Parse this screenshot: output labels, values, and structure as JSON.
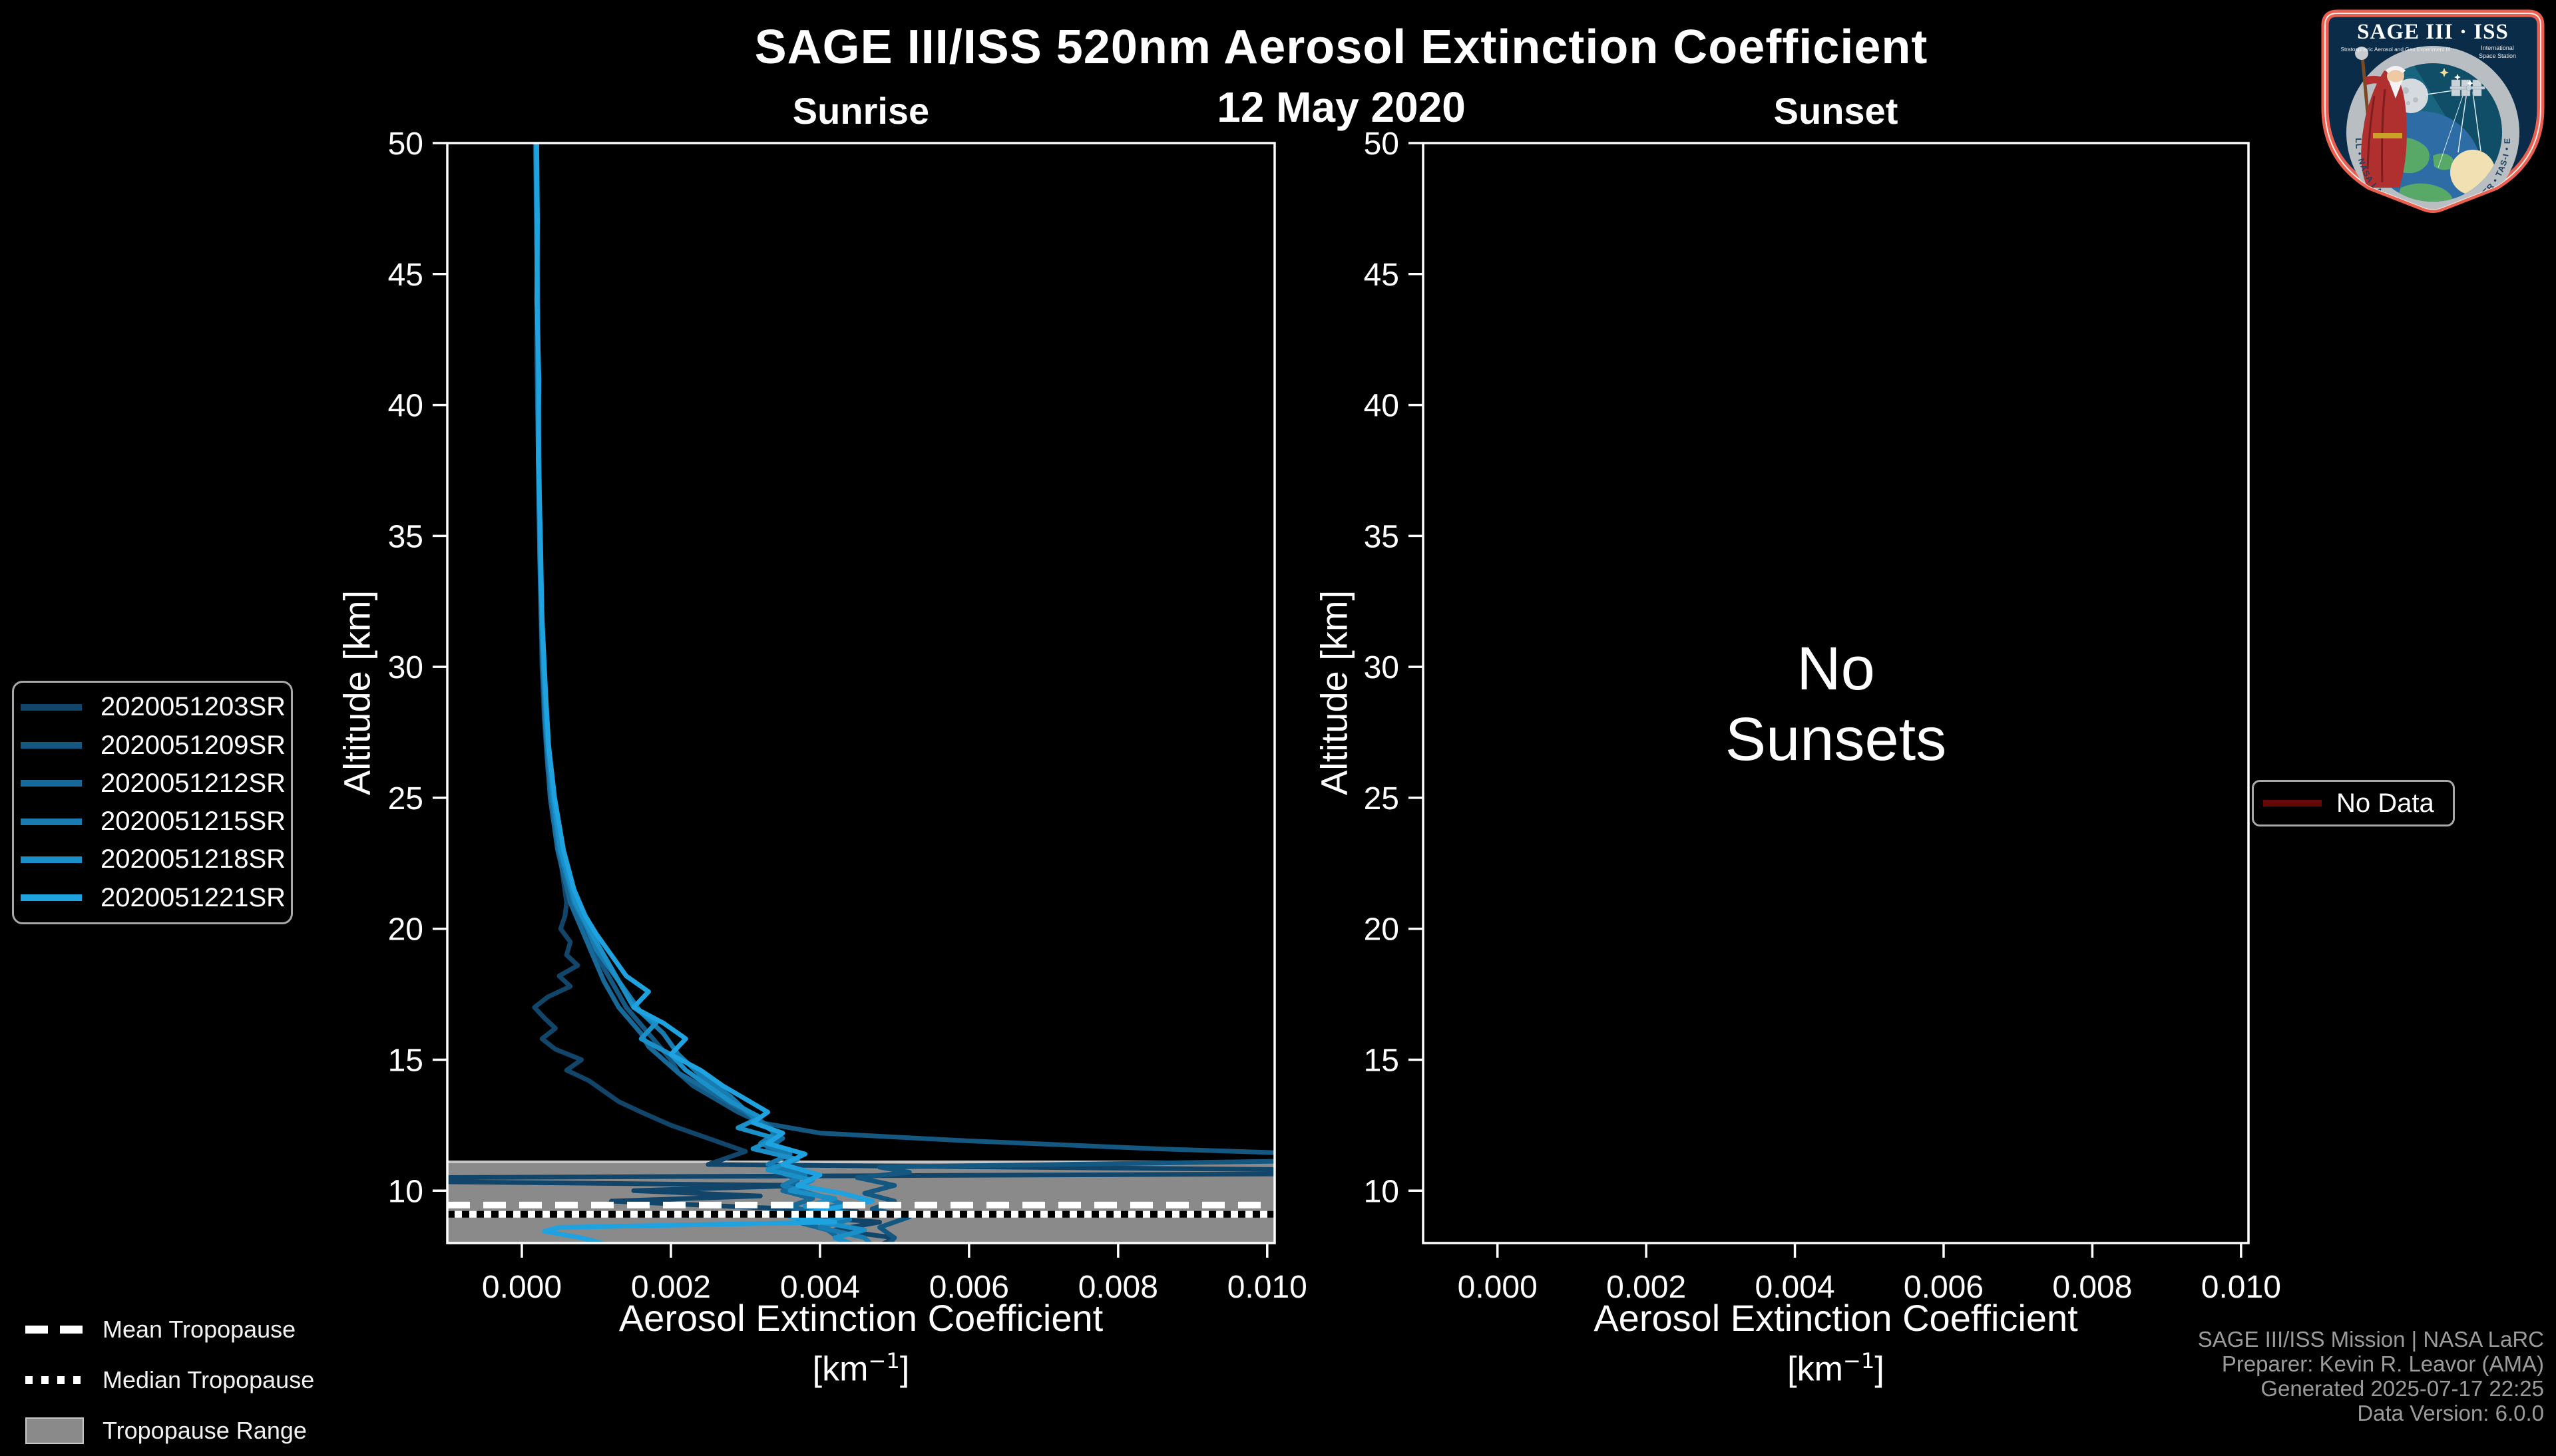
{
  "header": {
    "title": "SAGE III/ISS 520nm Aerosol Extinction Coefficient",
    "date": "12 May 2020"
  },
  "legends": {
    "no_data_label": "No Data",
    "no_data_color": "#660808",
    "tropopause": {
      "mean_label": "Mean Tropopause",
      "median_label": "Median Tropopause",
      "range_label": "Tropopause Range"
    }
  },
  "credits": {
    "line1": "SAGE III/ISS Mission | NASA LaRC",
    "line2": "Preparer: Kevin R. Leavor (AMA)",
    "line3": "Generated 2025-07-17 22:25",
    "line4": "Data Version: 6.0.0"
  },
  "logo": {
    "title": "SAGE III · ISS",
    "subtitle_left": "Stratospheric Aerosol and Gas Experiment III",
    "subtitle_right_1": "International",
    "subtitle_right_2": "Space Station",
    "ring_text": "BALL • NASA LANGLEY RESEARCH CENTER • TAS-I • ESA"
  },
  "chart_data": {
    "type": "line",
    "title": "SAGE III/ISS 520nm Aerosol Extinction Coefficient",
    "subtitle": "12 May 2020",
    "grid": false,
    "legend_position": "outside-left",
    "panels": [
      {
        "id": "sunrise",
        "title": "Sunrise",
        "xlabel": "Aerosol Extinction Coefficient",
        "xunit_prefix": "[km",
        "xunit_sup": "−1",
        "xunit_suffix": "]",
        "ylabel": "Altitude [km]",
        "xlim": [
          -0.001,
          0.0101
        ],
        "ylim": [
          8.0,
          50
        ],
        "xticks": [
          0.0,
          0.002,
          0.004,
          0.006,
          0.008,
          0.01
        ],
        "xtick_labels": [
          "0.000",
          "0.002",
          "0.004",
          "0.006",
          "0.008",
          "0.010"
        ],
        "yticks": [
          10,
          15,
          20,
          25,
          30,
          35,
          40,
          45,
          50
        ],
        "ytick_labels": [
          "10",
          "15",
          "20",
          "25",
          "30",
          "35",
          "40",
          "45",
          "50"
        ],
        "has_data": true
      },
      {
        "id": "sunset",
        "title": "Sunset",
        "xlabel": "Aerosol Extinction Coefficient",
        "xunit_prefix": "[km",
        "xunit_sup": "−1",
        "xunit_suffix": "]",
        "ylabel": "Altitude [km]",
        "xlim": [
          -0.001,
          0.0101
        ],
        "ylim": [
          8.0,
          50
        ],
        "xticks": [
          0.0,
          0.002,
          0.004,
          0.006,
          0.008,
          0.01
        ],
        "xtick_labels": [
          "0.000",
          "0.002",
          "0.004",
          "0.006",
          "0.008",
          "0.010"
        ],
        "yticks": [
          10,
          15,
          20,
          25,
          30,
          35,
          40,
          45,
          50
        ],
        "ytick_labels": [
          "10",
          "15",
          "20",
          "25",
          "30",
          "35",
          "40",
          "45",
          "50"
        ],
        "has_data": false,
        "annotation_line1": "No",
        "annotation_line2": "Sunsets"
      }
    ],
    "tropopause": {
      "mean_km": 9.45,
      "median_km": 9.1,
      "range_km": [
        8.0,
        11.1
      ]
    },
    "series": [
      {
        "name": "2020051203SR",
        "color": "#12456a",
        "points": [
          [
            50,
            0.00018
          ],
          [
            46,
            0.0002
          ],
          [
            42,
            0.00021
          ],
          [
            38,
            0.00022
          ],
          [
            34,
            0.00024
          ],
          [
            30,
            0.00027
          ],
          [
            28,
            0.0003
          ],
          [
            26,
            0.00035
          ],
          [
            24,
            0.00045
          ],
          [
            22,
            0.00055
          ],
          [
            21,
            0.0006
          ],
          [
            20.5,
            0.00058
          ],
          [
            20,
            0.00052
          ],
          [
            19.5,
            0.00065
          ],
          [
            19,
            0.0006
          ],
          [
            18.6,
            0.00075
          ],
          [
            18.2,
            0.0005
          ],
          [
            17.8,
            0.00065
          ],
          [
            17.4,
            0.00035
          ],
          [
            17,
            0.00017
          ],
          [
            16.6,
            0.0003
          ],
          [
            16.2,
            0.00045
          ],
          [
            15.8,
            0.00027
          ],
          [
            15.4,
            0.00045
          ],
          [
            15,
            0.0008
          ],
          [
            14.6,
            0.0006
          ],
          [
            14.2,
            0.0009
          ],
          [
            13.8,
            0.0011
          ],
          [
            13.4,
            0.0013
          ],
          [
            13,
            0.0016
          ],
          [
            12.5,
            0.002
          ],
          [
            12,
            0.0025
          ],
          [
            11.5,
            0.003
          ],
          [
            11,
            0.0025
          ],
          [
            10.8,
            0.0105
          ],
          [
            10.65,
            0.0112
          ],
          [
            10.5,
            -0.0012
          ],
          [
            10.35,
            -0.0014
          ],
          [
            10.2,
            0.0038
          ],
          [
            10,
            0.0015
          ],
          [
            9.8,
            0.0032
          ],
          [
            9.6,
            0.0012
          ],
          [
            9.4,
            0.0028
          ],
          [
            9.2,
            0.0045
          ],
          [
            9,
            0.0038
          ],
          [
            8.8,
            0.0048
          ],
          [
            8.5,
            0.0042
          ],
          [
            8.2,
            0.005
          ],
          [
            7.9,
            0.0048
          ]
        ]
      },
      {
        "name": "2020051209SR",
        "color": "#145781",
        "points": [
          [
            50,
            0.0002
          ],
          [
            46,
            0.00021
          ],
          [
            42,
            0.0002
          ],
          [
            38,
            0.00022
          ],
          [
            34,
            0.00025
          ],
          [
            30,
            0.00028
          ],
          [
            27,
            0.00033
          ],
          [
            25,
            0.0004
          ],
          [
            23,
            0.0005
          ],
          [
            21,
            0.0007
          ],
          [
            20,
            0.00085
          ],
          [
            19,
            0.001
          ],
          [
            18,
            0.0012
          ],
          [
            17,
            0.0014
          ],
          [
            16,
            0.0017
          ],
          [
            15,
            0.002
          ],
          [
            14.5,
            0.0021
          ],
          [
            14,
            0.0023
          ],
          [
            13.5,
            0.0026
          ],
          [
            13,
            0.0029
          ],
          [
            12.6,
            0.0032
          ],
          [
            12.2,
            0.004
          ],
          [
            11.9,
            0.006
          ],
          [
            11.6,
            0.0085
          ],
          [
            11.35,
            0.0112
          ],
          [
            11.15,
            0.0108
          ],
          [
            10.9,
            0.0048
          ],
          [
            10.7,
            0.0052
          ],
          [
            10.5,
            0.0045
          ],
          [
            10.2,
            0.005
          ],
          [
            9.9,
            0.0046
          ],
          [
            9.6,
            0.005
          ],
          [
            9.3,
            0.0047
          ],
          [
            9,
            0.0052
          ],
          [
            8.6,
            0.0048
          ],
          [
            8.2,
            0.005
          ],
          [
            7.9,
            0.0049
          ]
        ]
      },
      {
        "name": "2020051212SR",
        "color": "#166998",
        "points": [
          [
            50,
            0.00019
          ],
          [
            46,
            0.0002
          ],
          [
            42,
            0.00021
          ],
          [
            38,
            0.00022
          ],
          [
            34,
            0.00024
          ],
          [
            30,
            0.00028
          ],
          [
            27,
            0.00033
          ],
          [
            25,
            0.00038
          ],
          [
            23,
            0.00048
          ],
          [
            21,
            0.00065
          ],
          [
            20,
            0.0008
          ],
          [
            19,
            0.00095
          ],
          [
            18,
            0.0011
          ],
          [
            17,
            0.0013
          ],
          [
            16,
            0.0016
          ],
          [
            15.5,
            0.0017
          ],
          [
            15,
            0.0019
          ],
          [
            14.5,
            0.0021
          ],
          [
            14,
            0.0024
          ],
          [
            13.5,
            0.0027
          ],
          [
            13,
            0.003
          ],
          [
            12.5,
            0.0033
          ],
          [
            12,
            0.0035
          ],
          [
            11.6,
            0.0033
          ],
          [
            11.2,
            0.0036
          ],
          [
            10.8,
            0.0034
          ],
          [
            10.4,
            0.0037
          ],
          [
            10,
            0.0035
          ],
          [
            9.7,
            0.0039
          ],
          [
            9.4,
            0.0036
          ],
          [
            9.1,
            0.004
          ],
          [
            8.8,
            0.0037
          ],
          [
            8.5,
            0.0041
          ],
          [
            8.1,
            0.0043
          ],
          [
            7.9,
            0.0044
          ]
        ]
      },
      {
        "name": "2020051215SR",
        "color": "#187cb0",
        "points": [
          [
            50,
            0.0002
          ],
          [
            45,
            0.00021
          ],
          [
            40,
            0.00022
          ],
          [
            36,
            0.00023
          ],
          [
            32,
            0.00026
          ],
          [
            28,
            0.00031
          ],
          [
            25,
            0.0004
          ],
          [
            23,
            0.0005
          ],
          [
            21,
            0.0007
          ],
          [
            20,
            0.00088
          ],
          [
            19.2,
            0.001
          ],
          [
            18.4,
            0.0012
          ],
          [
            17.6,
            0.0014
          ],
          [
            16.8,
            0.0016
          ],
          [
            16,
            0.0019
          ],
          [
            15.2,
            0.0021
          ],
          [
            14.4,
            0.0024
          ],
          [
            13.6,
            0.0028
          ],
          [
            12.8,
            0.0031
          ],
          [
            12.2,
            0.0034
          ],
          [
            11.8,
            0.0032
          ],
          [
            11.4,
            0.0036
          ],
          [
            11,
            0.0033
          ],
          [
            10.6,
            0.0038
          ],
          [
            10.2,
            0.0035
          ],
          [
            9.8,
            0.004
          ],
          [
            9.5,
            0.0043
          ],
          [
            9.2,
            0.0039
          ],
          [
            8.9,
            0.0044
          ],
          [
            8.6,
            0.004
          ],
          [
            8.2,
            0.0046
          ],
          [
            7.9,
            0.0047
          ]
        ]
      },
      {
        "name": "2020051218SR",
        "color": "#1b8fc8",
        "points": [
          [
            50,
            0.00019
          ],
          [
            46,
            0.0002
          ],
          [
            42,
            0.00022
          ],
          [
            38,
            0.00023
          ],
          [
            34,
            0.00025
          ],
          [
            30,
            0.00029
          ],
          [
            27,
            0.00035
          ],
          [
            25,
            0.00042
          ],
          [
            23,
            0.00052
          ],
          [
            21,
            0.00072
          ],
          [
            20,
            0.0009
          ],
          [
            19,
            0.0011
          ],
          [
            18,
            0.0013
          ],
          [
            17,
            0.0015
          ],
          [
            16.4,
            0.0018
          ],
          [
            15.8,
            0.0016
          ],
          [
            15.2,
            0.002
          ],
          [
            14.6,
            0.0022
          ],
          [
            14,
            0.0025
          ],
          [
            13.4,
            0.0028
          ],
          [
            12.8,
            0.0032
          ],
          [
            12.4,
            0.0029
          ],
          [
            12,
            0.0034
          ],
          [
            11.6,
            0.0031
          ],
          [
            11.2,
            0.0037
          ],
          [
            10.8,
            0.0033
          ],
          [
            10.4,
            0.0039
          ],
          [
            10,
            0.0036
          ],
          [
            9.7,
            0.0042
          ],
          [
            9.4,
            0.0038
          ],
          [
            9.1,
            0.0045
          ],
          [
            8.8,
            0.004
          ],
          [
            8.5,
            0.0046
          ],
          [
            8.2,
            0.0042
          ],
          [
            7.9,
            0.0045
          ]
        ]
      },
      {
        "name": "2020051221SR",
        "color": "#1fa2e0",
        "points": [
          [
            50,
            0.0002
          ],
          [
            47,
            0.00021
          ],
          [
            44,
            0.0002
          ],
          [
            41,
            0.00023
          ],
          [
            38,
            0.00022
          ],
          [
            35,
            0.00025
          ],
          [
            32,
            0.00027
          ],
          [
            29,
            0.00032
          ],
          [
            27,
            0.00036
          ],
          [
            25,
            0.00044
          ],
          [
            23,
            0.00056
          ],
          [
            21.5,
            0.0007
          ],
          [
            20.5,
            0.00085
          ],
          [
            19.8,
            0.001
          ],
          [
            19,
            0.0012
          ],
          [
            18.2,
            0.0014
          ],
          [
            17.6,
            0.0017
          ],
          [
            17,
            0.0015
          ],
          [
            16.4,
            0.0019
          ],
          [
            15.8,
            0.0022
          ],
          [
            15.2,
            0.002
          ],
          [
            14.6,
            0.0024
          ],
          [
            14,
            0.0027
          ],
          [
            13.5,
            0.003
          ],
          [
            13,
            0.0033
          ],
          [
            12.6,
            0.0031
          ],
          [
            12.2,
            0.0035
          ],
          [
            11.8,
            0.0033
          ],
          [
            11.4,
            0.0038
          ],
          [
            11,
            0.0035
          ],
          [
            10.6,
            0.004
          ],
          [
            10.2,
            0.0037
          ],
          [
            9.9,
            0.0043
          ],
          [
            9.6,
            0.0047
          ],
          [
            9.3,
            0.0041
          ],
          [
            9,
            0.0036
          ],
          [
            8.8,
            0.0042
          ],
          [
            8.6,
            0.0005
          ],
          [
            8.45,
            0.0003
          ],
          [
            8.2,
            0.0008
          ],
          [
            7.9,
            0.0012
          ]
        ]
      }
    ]
  }
}
